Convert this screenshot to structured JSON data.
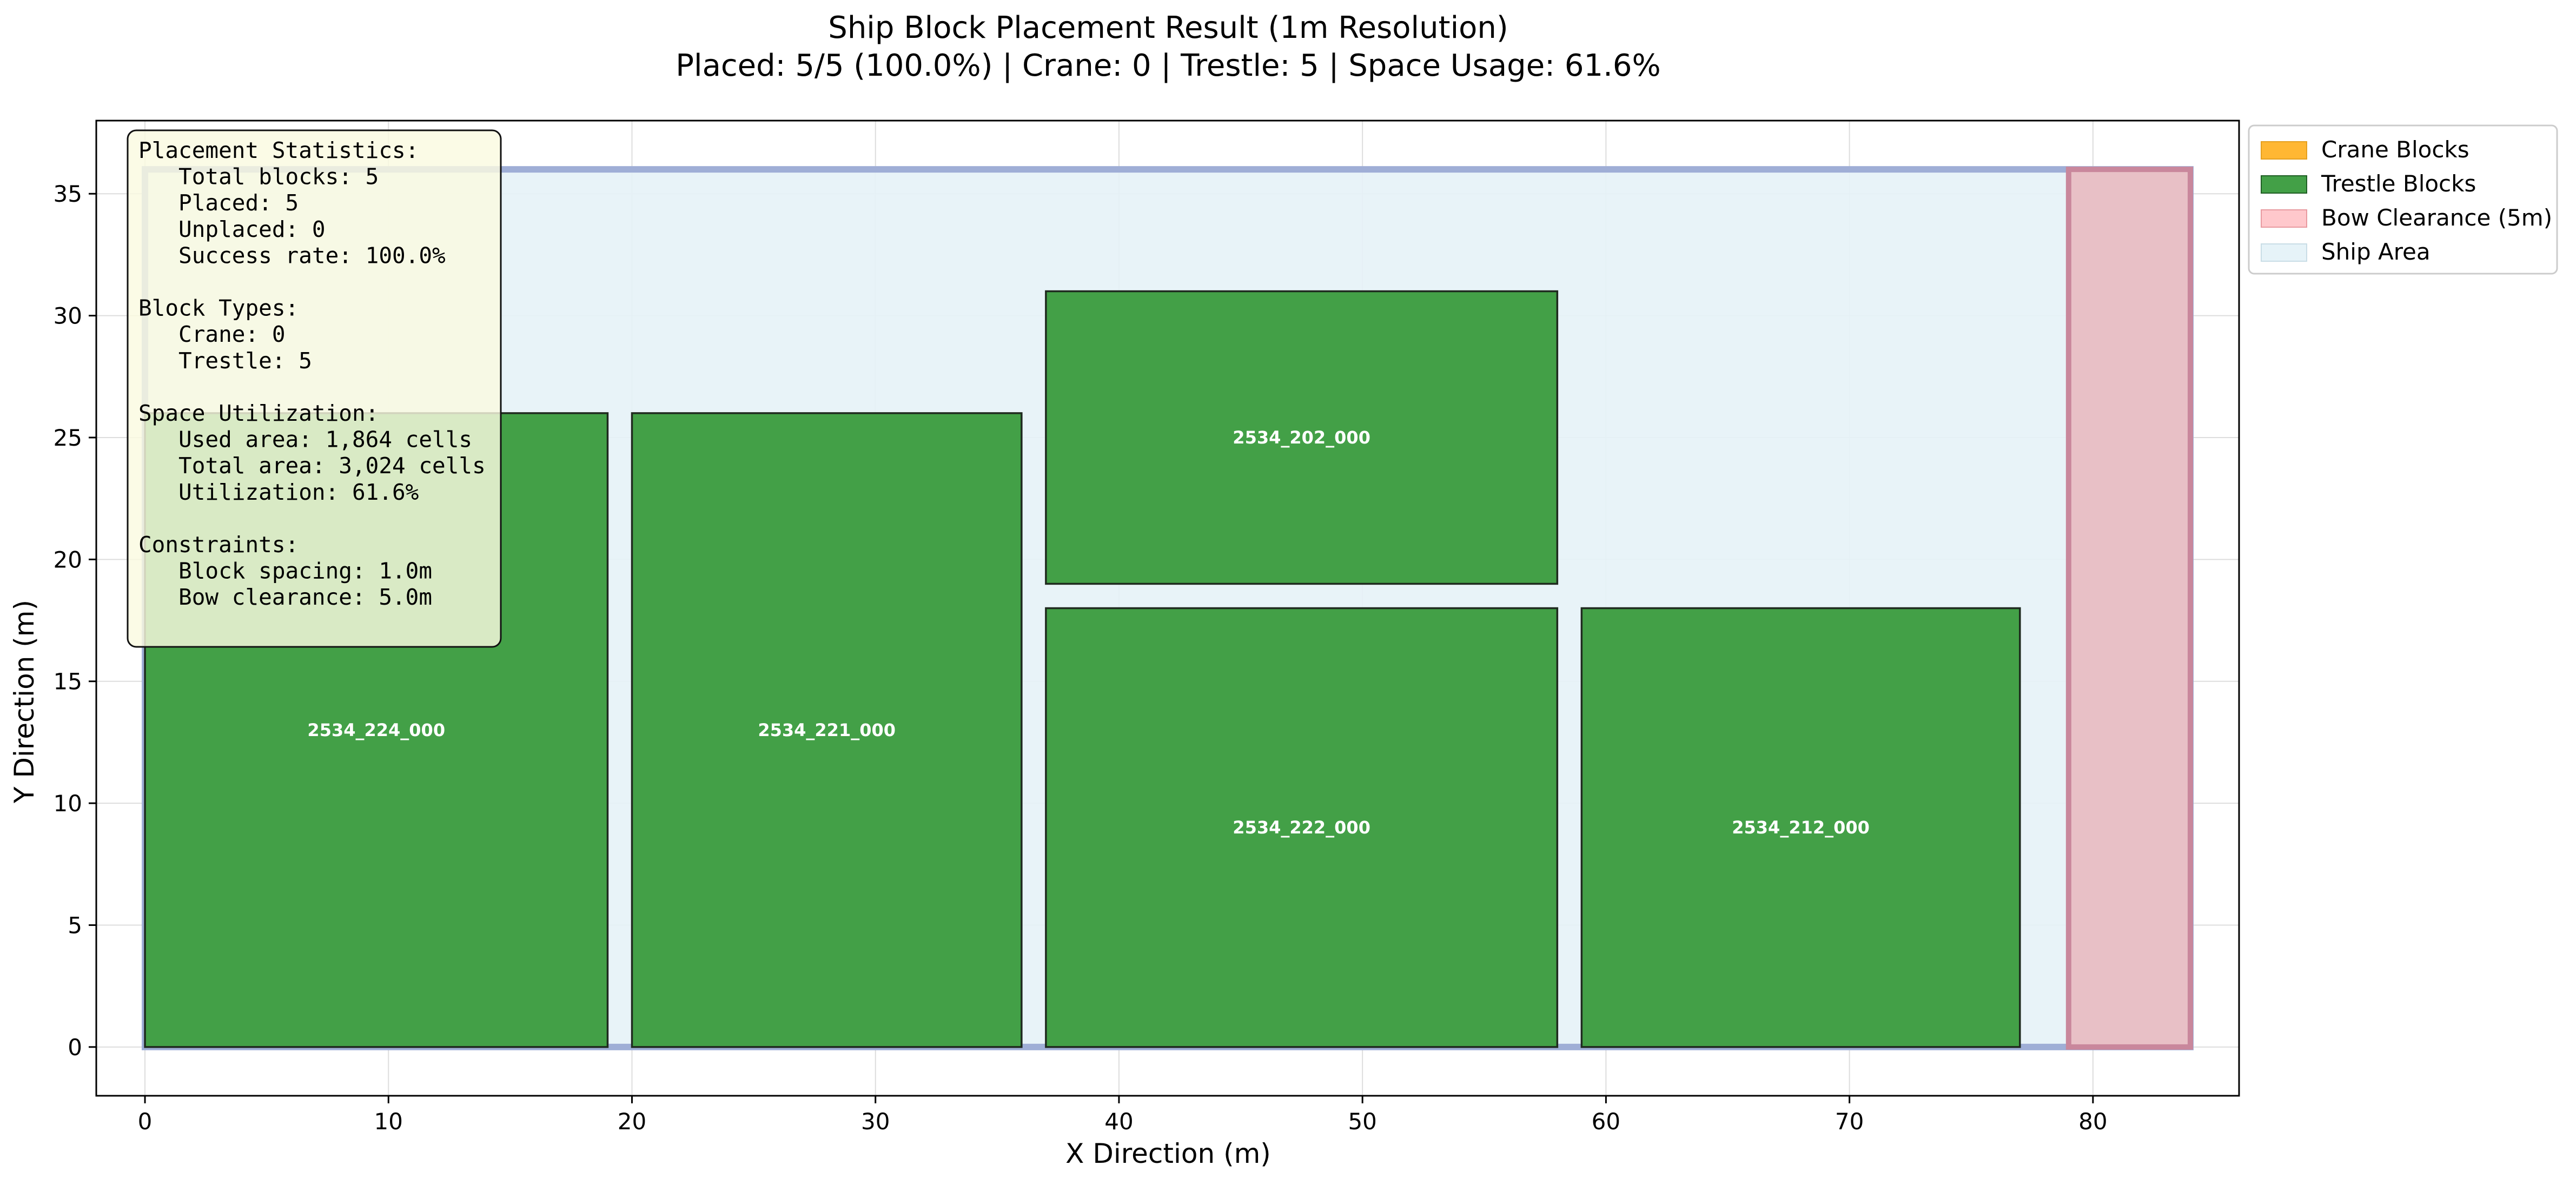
{
  "chart_data": {
    "type": "bar",
    "title": "Ship Block Placement Result (1m Resolution)",
    "subtitle": "Placed: 5/5 (100.0%) | Crane: 0 | Trestle: 5 | Space Usage: 61.6%",
    "xlabel": "X Direction (m)",
    "ylabel": "Y Direction (m)",
    "xlim": [
      -2,
      86
    ],
    "ylim": [
      -2,
      38
    ],
    "xticks": [
      0,
      10,
      20,
      30,
      40,
      50,
      60,
      70,
      80
    ],
    "yticks": [
      0,
      5,
      10,
      15,
      20,
      25,
      30,
      35
    ],
    "grid": true,
    "ship_area": {
      "x": 0,
      "y": 0,
      "width": 84,
      "height": 36
    },
    "bow_clearance": {
      "x": 79,
      "y": 0,
      "width": 5,
      "height": 36
    },
    "blocks": [
      {
        "id": "2534_224_000",
        "type": "Trestle",
        "x": 0,
        "y": 0,
        "width": 19,
        "height": 26
      },
      {
        "id": "2534_221_000",
        "type": "Trestle",
        "x": 20,
        "y": 0,
        "width": 16,
        "height": 26
      },
      {
        "id": "2534_202_000",
        "type": "Trestle",
        "x": 37,
        "y": 19,
        "width": 21,
        "height": 12
      },
      {
        "id": "2534_222_000",
        "type": "Trestle",
        "x": 37,
        "y": 0,
        "width": 21,
        "height": 18
      },
      {
        "id": "2534_212_000",
        "type": "Trestle",
        "x": 59,
        "y": 0,
        "width": 18,
        "height": 18
      }
    ],
    "legend": {
      "placement": "outside-top-right",
      "entries": [
        {
          "label": "Crane Blocks",
          "color": "#FFB733"
        },
        {
          "label": "Trestle Blocks",
          "color": "#43A047"
        },
        {
          "label": "Bow Clearance (5m)",
          "color": "#FFC8CC"
        },
        {
          "label": "Ship Area",
          "color": "#E6F3F8"
        }
      ]
    },
    "stats_box": [
      "Placement Statistics:",
      "   Total blocks: 5",
      "   Placed: 5",
      "   Unplaced: 0",
      "   Success rate: 100.0%",
      "",
      "Block Types:",
      "   Crane: 0",
      "   Trestle: 5",
      "",
      "Space Utilization:",
      "   Used area: 1,864 cells",
      "   Total area: 3,024 cells",
      "   Utilization: 61.6%",
      "",
      "Constraints:",
      "   Block spacing: 1.0m",
      "   Bow clearance: 5.0m"
    ]
  },
  "colors": {
    "trestle_fill": "#43A047",
    "crane_fill": "#FFB733",
    "bow_fill": "#E8C0C6",
    "bow_edge": "#C9879C",
    "ship_fill": "#E5F2F7",
    "ship_edge": "#9FAED6",
    "grid": "#DDDDDD",
    "stats_bg": "#FAFAE0"
  }
}
